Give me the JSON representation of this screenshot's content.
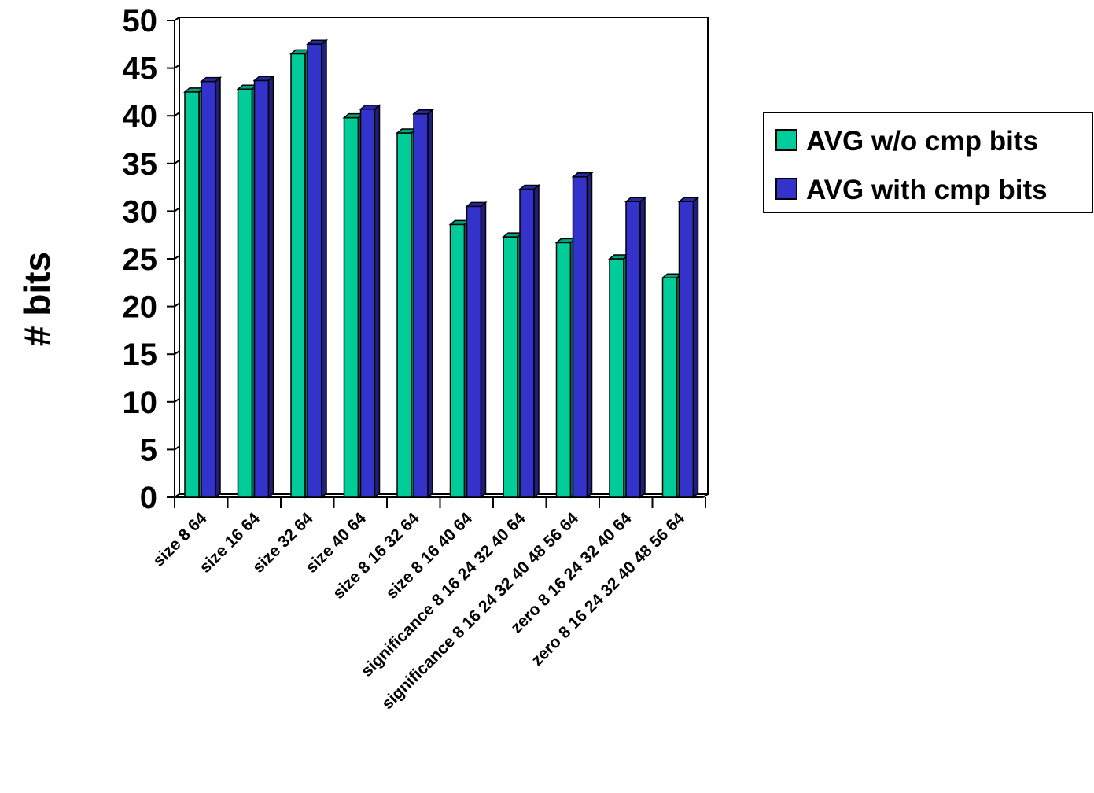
{
  "chart_data": {
    "type": "bar",
    "title": "",
    "xlabel": "",
    "ylabel": "# bits",
    "ylim": [
      0,
      50
    ],
    "yticks": [
      0,
      5,
      10,
      15,
      20,
      25,
      30,
      35,
      40,
      45,
      50
    ],
    "grid": true,
    "legend_position": "right",
    "categories": [
      "size 8 64",
      "size 16 64",
      "size 32 64",
      "size 40 64",
      "size 8 16 32 64",
      "size 8 16 40 64",
      "significance 8 16 24 32 40 64",
      "significance 8 16 24 32 40 48 56 64",
      "zero 8 16 24 32 40 64",
      "zero 8 16 24 32 40 48 56 64"
    ],
    "series": [
      {
        "name": "AVG w/o cmp bits",
        "color": "#00CC99",
        "values": [
          42.5,
          42.8,
          46.5,
          39.8,
          38.2,
          28.6,
          27.3,
          26.7,
          25.0,
          23.0
        ]
      },
      {
        "name": "AVG with cmp bits",
        "color": "#3333CC",
        "values": [
          43.6,
          43.7,
          47.5,
          40.7,
          40.2,
          30.5,
          32.3,
          33.6,
          31.0,
          31.0
        ]
      }
    ]
  }
}
